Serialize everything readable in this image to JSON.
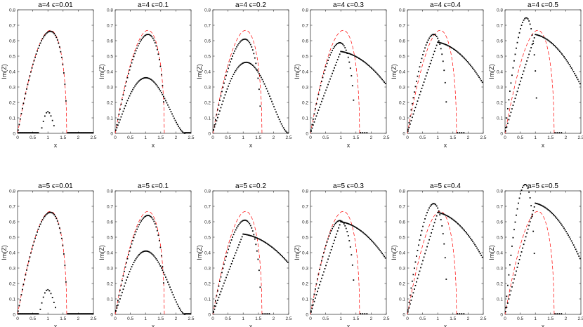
{
  "chart_data": {
    "type": "scatter",
    "layout": "2x6 panel grid",
    "reference_curve": {
      "style": "dashed",
      "color": "#ff0000"
    },
    "markers": {
      "color": "#000000"
    },
    "xlabel": "x",
    "ylabel": "Im(Z)",
    "xlim": [
      0,
      2.5
    ],
    "ylim": [
      0,
      0.8
    ],
    "x_ticks": [
      "0",
      "0.5",
      "1",
      "1.5",
      "2",
      "2.5"
    ],
    "y_ticks": [
      "0",
      "0.1",
      "0.2",
      "0.3",
      "0.4",
      "0.5",
      "0.6",
      "0.7",
      "0.8"
    ],
    "grid": false,
    "panels": [
      {
        "title": "a=4   ϵ=0.01",
        "a": 4,
        "eps": 0.01,
        "upper": {
          "peak": 0.66,
          "end": 1.62
        },
        "lower": {
          "peak": 0.14,
          "x0": 0.8,
          "x1": 1.25,
          "sparse": true
        }
      },
      {
        "title": "a=4   ϵ=0.1",
        "a": 4,
        "eps": 0.1,
        "upper": {
          "peak": 0.64,
          "end": 1.62
        },
        "lower": {
          "peak": 0.36,
          "x0": 0.0,
          "x1": 2.3
        }
      },
      {
        "title": "a=4   ϵ=0.2",
        "a": 4,
        "eps": 0.2,
        "upper": {
          "peak": 0.61,
          "end": 1.58
        },
        "lower": {
          "peak": 0.46,
          "x0": 0.0,
          "x1": 2.5
        }
      },
      {
        "title": "a=4   ϵ=0.3",
        "a": 4,
        "eps": 0.3,
        "upper": {
          "peak": 0.58,
          "end": 1.45
        },
        "lower": {
          "peak": 0.53,
          "x0": 0.0,
          "x1": 2.5
        }
      },
      {
        "title": "a=4   ϵ=0.4",
        "a": 4,
        "eps": 0.4,
        "upper": {
          "peak": 0.59,
          "end": 1.3
        },
        "lower": {
          "peak": 0.59,
          "x0": 0.0,
          "x1": 2.5
        }
      },
      {
        "title": "a=4   ϵ=0.5",
        "a": 4,
        "eps": 0.5,
        "upper": {
          "peak": 0.64,
          "end": 1.05
        },
        "lower": {
          "peak": 0.64,
          "x0": 0.0,
          "x1": 2.5
        }
      },
      {
        "title": "a=5   ϵ=0.01",
        "a": 5,
        "eps": 0.01,
        "upper": {
          "peak": 0.66,
          "end": 1.62
        },
        "lower": {
          "peak": 0.16,
          "x0": 0.75,
          "x1": 1.3,
          "sparse": true
        }
      },
      {
        "title": "a=5   ϵ=0.1",
        "a": 5,
        "eps": 0.1,
        "upper": {
          "peak": 0.64,
          "end": 1.62
        },
        "lower": {
          "peak": 0.41,
          "x0": 0.0,
          "x1": 2.3
        }
      },
      {
        "title": "a=5   ϵ=0.2",
        "a": 5,
        "eps": 0.2,
        "upper": {
          "peak": 0.61,
          "end": 1.58
        },
        "lower": {
          "peak": 0.52,
          "x0": 0.0,
          "x1": 2.5
        }
      },
      {
        "title": "a=5   ϵ=0.3",
        "a": 5,
        "eps": 0.3,
        "upper": {
          "peak": 0.6,
          "end": 1.45
        },
        "lower": {
          "peak": 0.6,
          "x0": 0.0,
          "x1": 2.5
        }
      },
      {
        "title": "a=5   ϵ=0.4",
        "a": 5,
        "eps": 0.4,
        "upper": {
          "peak": 0.66,
          "end": 1.3
        },
        "lower": {
          "peak": 0.66,
          "x0": 0.0,
          "x1": 2.5
        }
      },
      {
        "title": "a=5   ϵ=0.5",
        "a": 5,
        "eps": 0.5,
        "upper": {
          "peak": 0.72,
          "end": 1.0
        },
        "lower": {
          "peak": 0.72,
          "x0": 0.0,
          "x1": 2.5
        }
      }
    ]
  }
}
